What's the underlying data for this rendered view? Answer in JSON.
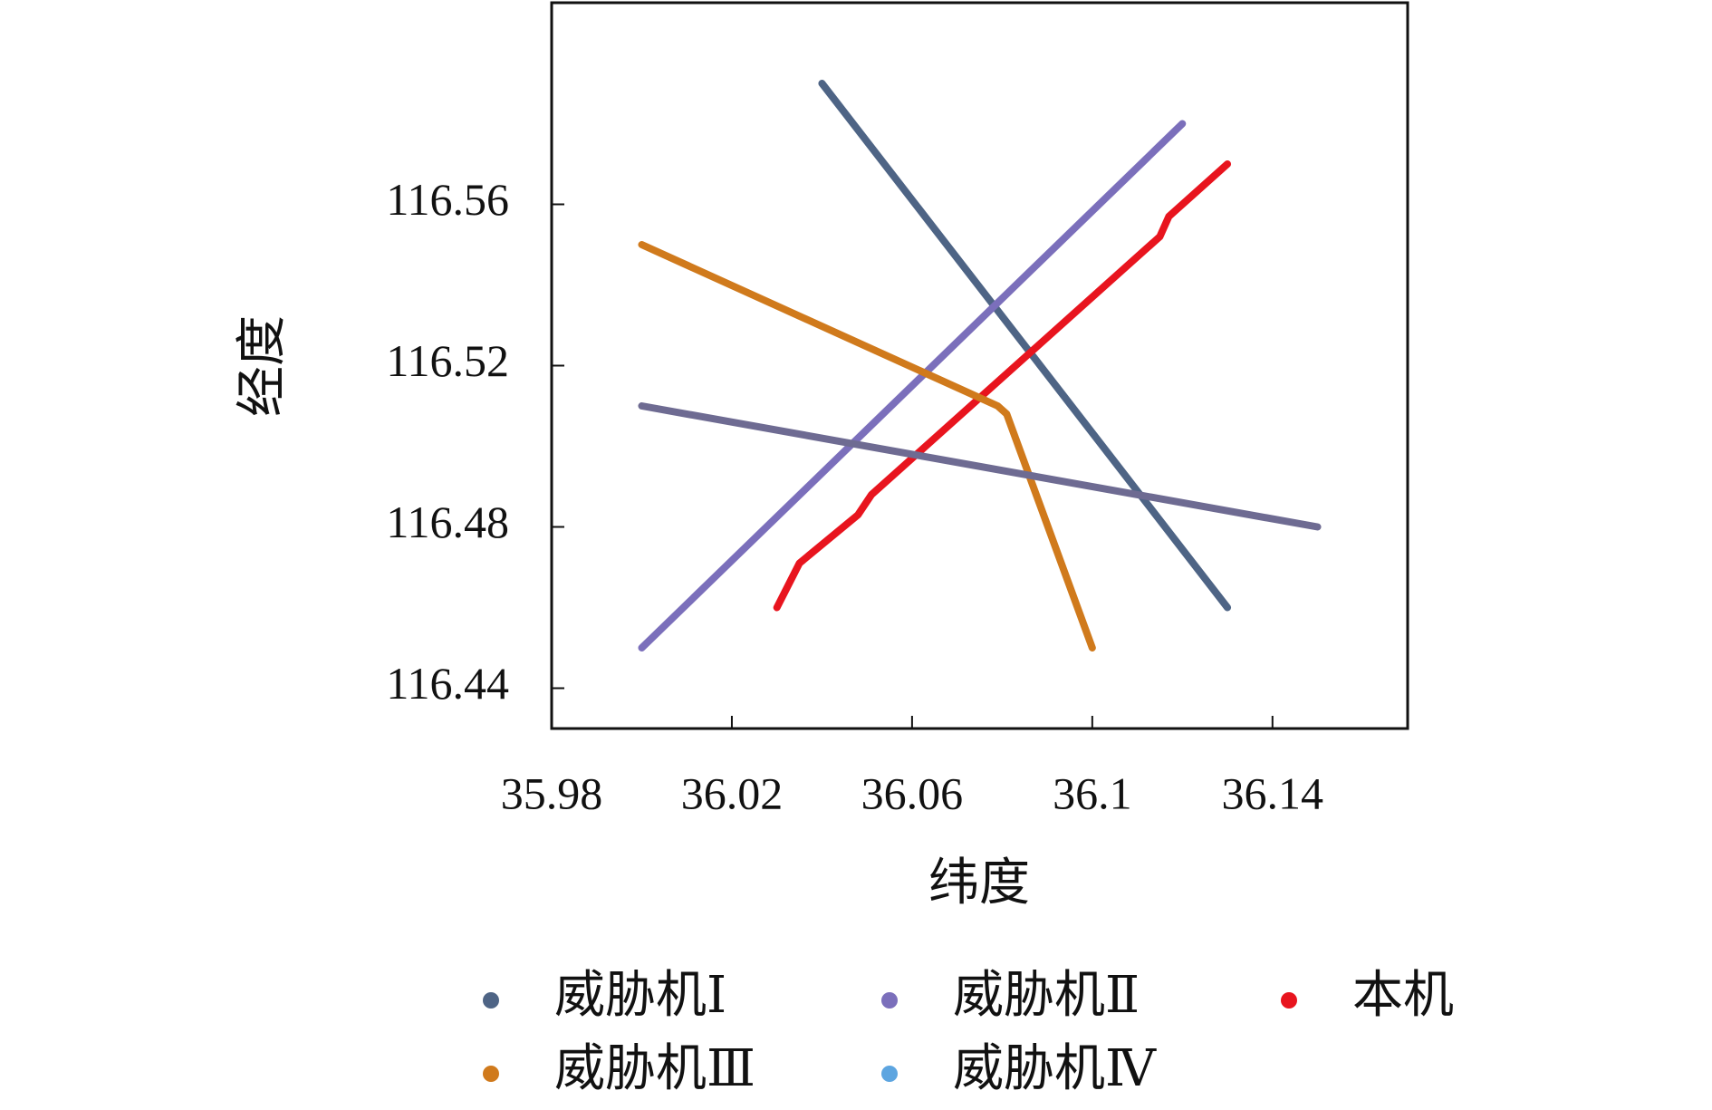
{
  "chart_data": {
    "type": "line",
    "x_label": "纬度",
    "y_label": "经度",
    "xlim": [
      35.98,
      36.17
    ],
    "ylim": [
      116.43,
      116.61
    ],
    "xticks": [
      35.98,
      36.02,
      36.06,
      36.1,
      36.14
    ],
    "yticks": [
      116.44,
      116.48,
      116.52,
      116.56
    ],
    "legend": "bottom",
    "series": [
      {
        "name": "威胁机Ⅰ",
        "color": "#4e6485",
        "x": [
          36.04,
          36.13
        ],
        "values": [
          116.59,
          116.46
        ]
      },
      {
        "name": "威胁机Ⅱ",
        "color": "#7b6fbb",
        "x": [
          36.0,
          36.12
        ],
        "values": [
          116.45,
          116.58
        ]
      },
      {
        "name": "本机",
        "color": "#e8141e",
        "x": [
          36.03,
          36.035,
          36.048,
          36.051,
          36.115,
          36.117,
          36.13
        ],
        "values": [
          116.46,
          116.471,
          116.483,
          116.488,
          116.552,
          116.557,
          116.57
        ]
      },
      {
        "name": "威胁机Ⅲ",
        "color": "#d07a1c",
        "x": [
          36.0,
          36.079,
          36.081,
          36.1
        ],
        "values": [
          116.55,
          116.51,
          116.508,
          116.45
        ]
      },
      {
        "name": "威胁机Ⅳ",
        "color": "#6e6b92",
        "legend_color": "#5da5e0",
        "x": [
          36.0,
          36.15
        ],
        "values": [
          116.51,
          116.48
        ]
      }
    ]
  }
}
